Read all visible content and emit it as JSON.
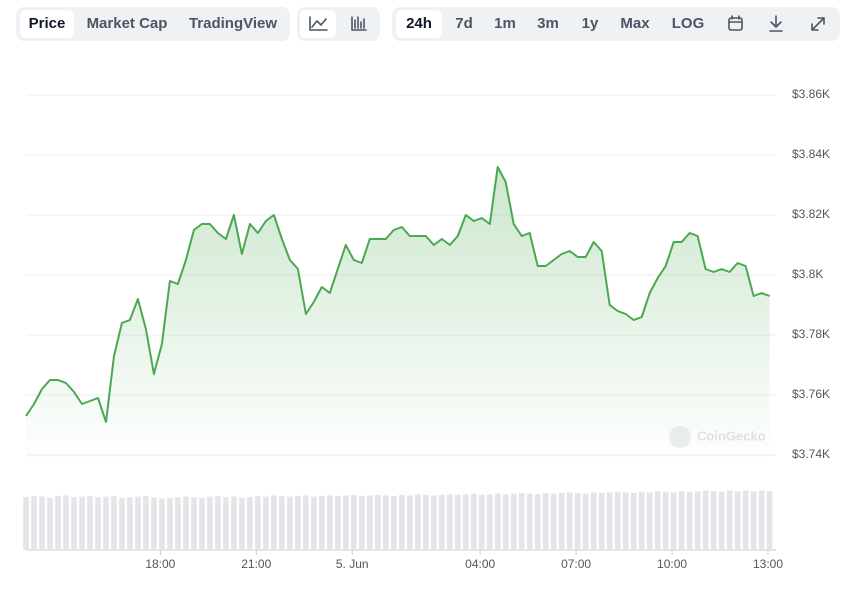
{
  "toolbar": {
    "tabs": [
      "Price",
      "Market Cap",
      "TradingView"
    ],
    "ranges": [
      "24h",
      "7d",
      "1m",
      "3m",
      "1y",
      "Max",
      "LOG"
    ]
  },
  "chart_data": {
    "type": "line",
    "watermark": "CoinGecko",
    "x": [
      13.8,
      14.05,
      14.3,
      14.55,
      14.8,
      15.05,
      15.3,
      15.55,
      15.8,
      16.05,
      16.3,
      16.55,
      16.8,
      17.05,
      17.3,
      17.55,
      17.8,
      18.05,
      18.3,
      18.55,
      18.8,
      19.05,
      19.3,
      19.55,
      19.8,
      20.05,
      20.3,
      20.55,
      20.8,
      21.05,
      21.3,
      21.55,
      21.8,
      22.05,
      22.3,
      22.55,
      22.8,
      23.05,
      23.3,
      23.55,
      23.8,
      24.05,
      24.3,
      24.55,
      24.8,
      25.05,
      25.3,
      25.55,
      25.8,
      26.05,
      26.3,
      26.55,
      26.8,
      27.05,
      27.3,
      27.55,
      27.8,
      28.05,
      28.3,
      28.55,
      28.8,
      29.05,
      29.3,
      29.55,
      29.8,
      30.05,
      30.3,
      30.55,
      30.8,
      31.05,
      31.3,
      31.55,
      31.8,
      32.05,
      32.3,
      32.55,
      32.8,
      33.05,
      33.3,
      33.55,
      33.8,
      34.05,
      34.3,
      34.55,
      34.8,
      35.05,
      35.3,
      35.55,
      35.8,
      36.05,
      36.3,
      36.55,
      36.8,
      37.05
    ],
    "series": [
      {
        "color": "#4aa84f",
        "values": [
          3753,
          3757,
          3762,
          3765,
          3765,
          3764,
          3761,
          3757,
          3758,
          3759,
          3751,
          3773,
          3784,
          3785,
          3792,
          3782,
          3767,
          3777,
          3798,
          3797,
          3805,
          3815,
          3817,
          3817,
          3814,
          3812,
          3820,
          3807,
          3817,
          3814,
          3818,
          3820,
          3812,
          3805,
          3802,
          3787,
          3791,
          3796,
          3794,
          3802,
          3810,
          3805,
          3804,
          3812,
          3812,
          3812,
          3815,
          3816,
          3813,
          3813,
          3813,
          3810,
          3812,
          3810,
          3813,
          3820,
          3818,
          3819,
          3817,
          3836,
          3831,
          3817,
          3813,
          3814,
          3803,
          3803,
          3805,
          3807,
          3808,
          3806,
          3806,
          3811,
          3808,
          3790,
          3788,
          3787,
          3785,
          3786,
          3794,
          3799,
          3803,
          3811,
          3811,
          3814,
          3813,
          3802,
          3801,
          3802,
          3801,
          3804,
          3803,
          3793,
          3794,
          3793
        ]
      }
    ],
    "volume": {
      "color": "#e3e5e8",
      "ylim": [
        0,
        100
      ],
      "values": [
        88,
        90,
        89,
        87,
        90,
        91,
        88,
        89,
        90,
        88,
        89,
        90,
        87,
        88,
        89,
        90,
        88,
        86,
        87,
        88,
        89,
        88,
        87,
        89,
        90,
        88,
        89,
        87,
        88,
        90,
        89,
        91,
        90,
        89,
        90,
        91,
        89,
        90,
        91,
        90,
        91,
        92,
        90,
        91,
        92,
        91,
        90,
        92,
        91,
        93,
        92,
        91,
        92,
        93,
        92,
        93,
        94,
        92,
        93,
        94,
        93,
        94,
        95,
        94,
        93,
        95,
        94,
        95,
        96,
        95,
        94,
        96,
        95,
        96,
        97,
        96,
        95,
        97,
        96,
        98,
        97,
        96,
        98,
        97,
        98,
        99,
        98,
        97,
        99,
        98,
        99,
        98,
        99,
        98
      ]
    },
    "xlim": [
      13.8,
      37.25
    ],
    "ylim": [
      3730,
      3880
    ],
    "xticks": [
      {
        "value": 18,
        "label": "18:00"
      },
      {
        "value": 21,
        "label": "21:00"
      },
      {
        "value": 24,
        "label": "5. Jun"
      },
      {
        "value": 28,
        "label": "04:00"
      },
      {
        "value": 31,
        "label": "07:00"
      },
      {
        "value": 34,
        "label": "10:00"
      },
      {
        "value": 37,
        "label": "13:00"
      }
    ],
    "yticks": [
      {
        "value": 3740,
        "label": "$3.74K"
      },
      {
        "value": 3760,
        "label": "$3.76K"
      },
      {
        "value": 3780,
        "label": "$3.78K"
      },
      {
        "value": 3800,
        "label": "$3.8K"
      },
      {
        "value": 3820,
        "label": "$3.82K"
      },
      {
        "value": 3840,
        "label": "$3.84K"
      },
      {
        "value": 3860,
        "label": "$3.86K"
      }
    ],
    "grid": true
  }
}
